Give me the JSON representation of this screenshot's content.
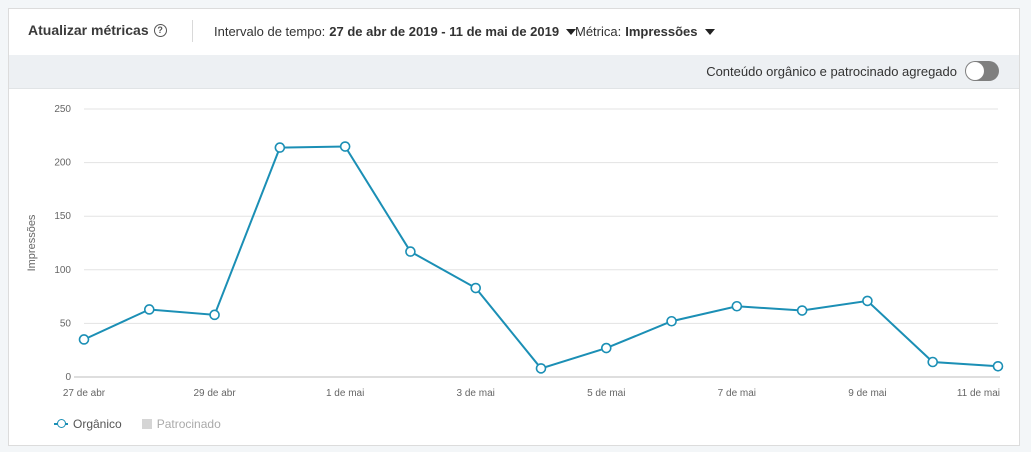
{
  "header": {
    "title": "Atualizar métricas",
    "help_icon": "help-circle-icon",
    "interval_label": "Intervalo de tempo:",
    "interval_value": "27 de abr de 2019 - 11 de mai de 2019",
    "metric_label": "Métrica:",
    "metric_value": "Impressões"
  },
  "toggle": {
    "label": "Conteúdo orgânico e patrocinado agregado",
    "state": "off"
  },
  "chart_data": {
    "type": "line",
    "ylabel": "Impressões",
    "xlabel": "",
    "ylim": [
      0,
      250
    ],
    "yticks": [
      0,
      50,
      100,
      150,
      200,
      250
    ],
    "grid": true,
    "x": [
      "27 de abr",
      "28 de abr",
      "29 de abr",
      "30 de abr",
      "1 de mai",
      "2 de mai",
      "3 de mai",
      "4 de mai",
      "5 de mai",
      "6 de mai",
      "7 de mai",
      "8 de mai",
      "9 de mai",
      "10 de mai",
      "11 de mai"
    ],
    "xtick_labels": [
      "27 de abr",
      "",
      "29 de abr",
      "",
      "1 de mai",
      "",
      "3 de mai",
      "",
      "5 de mai",
      "",
      "7 de mai",
      "",
      "9 de mai",
      "",
      "11 de mai"
    ],
    "series": [
      {
        "name": "Orgânico",
        "color": "#1b8fb5",
        "values": [
          35,
          63,
          58,
          214,
          215,
          117,
          83,
          8,
          27,
          52,
          66,
          62,
          71,
          14,
          10
        ]
      }
    ],
    "legend": [
      {
        "name": "Orgânico",
        "color": "#1b8fb5",
        "active": true
      },
      {
        "name": "Patrocinado",
        "color": "#d5d5d5",
        "active": false
      }
    ],
    "legend_position": "bottom-left"
  }
}
